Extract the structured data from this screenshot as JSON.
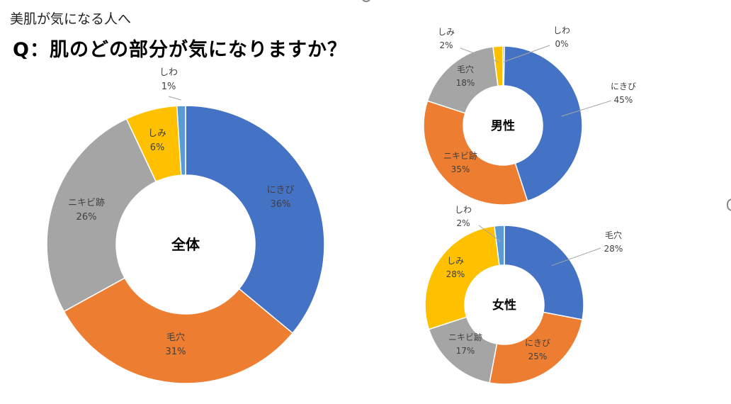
{
  "subtitle": "美肌が気になる人へ",
  "question": "Q：肌のどの部分が気になりますか？",
  "chart_data": [
    {
      "type": "pie",
      "title": "全体",
      "categories": [
        "にきび",
        "毛穴",
        "ニキビ跡",
        "しみ",
        "しわ"
      ],
      "values": [
        36,
        31,
        26,
        6,
        1
      ],
      "unit": "%",
      "colors": [
        "#4472C4",
        "#ED7D31",
        "#A5A5A5",
        "#FFC000",
        "#5B9BD5"
      ]
    },
    {
      "type": "pie",
      "title": "男性",
      "categories": [
        "にきび",
        "ニキビ跡",
        "毛穴",
        "しみ",
        "しわ"
      ],
      "values": [
        45,
        35,
        18,
        2,
        0
      ],
      "unit": "%",
      "colors": [
        "#4472C4",
        "#ED7D31",
        "#A5A5A5",
        "#FFC000",
        "#5B9BD5"
      ]
    },
    {
      "type": "pie",
      "title": "女性",
      "categories": [
        "毛穴",
        "にきび",
        "ニキビ跡",
        "しみ",
        "しわ"
      ],
      "values": [
        28,
        25,
        17,
        28,
        2
      ],
      "unit": "%",
      "colors": [
        "#4472C4",
        "#ED7D31",
        "#A5A5A5",
        "#FFC000",
        "#5B9BD5"
      ]
    }
  ]
}
